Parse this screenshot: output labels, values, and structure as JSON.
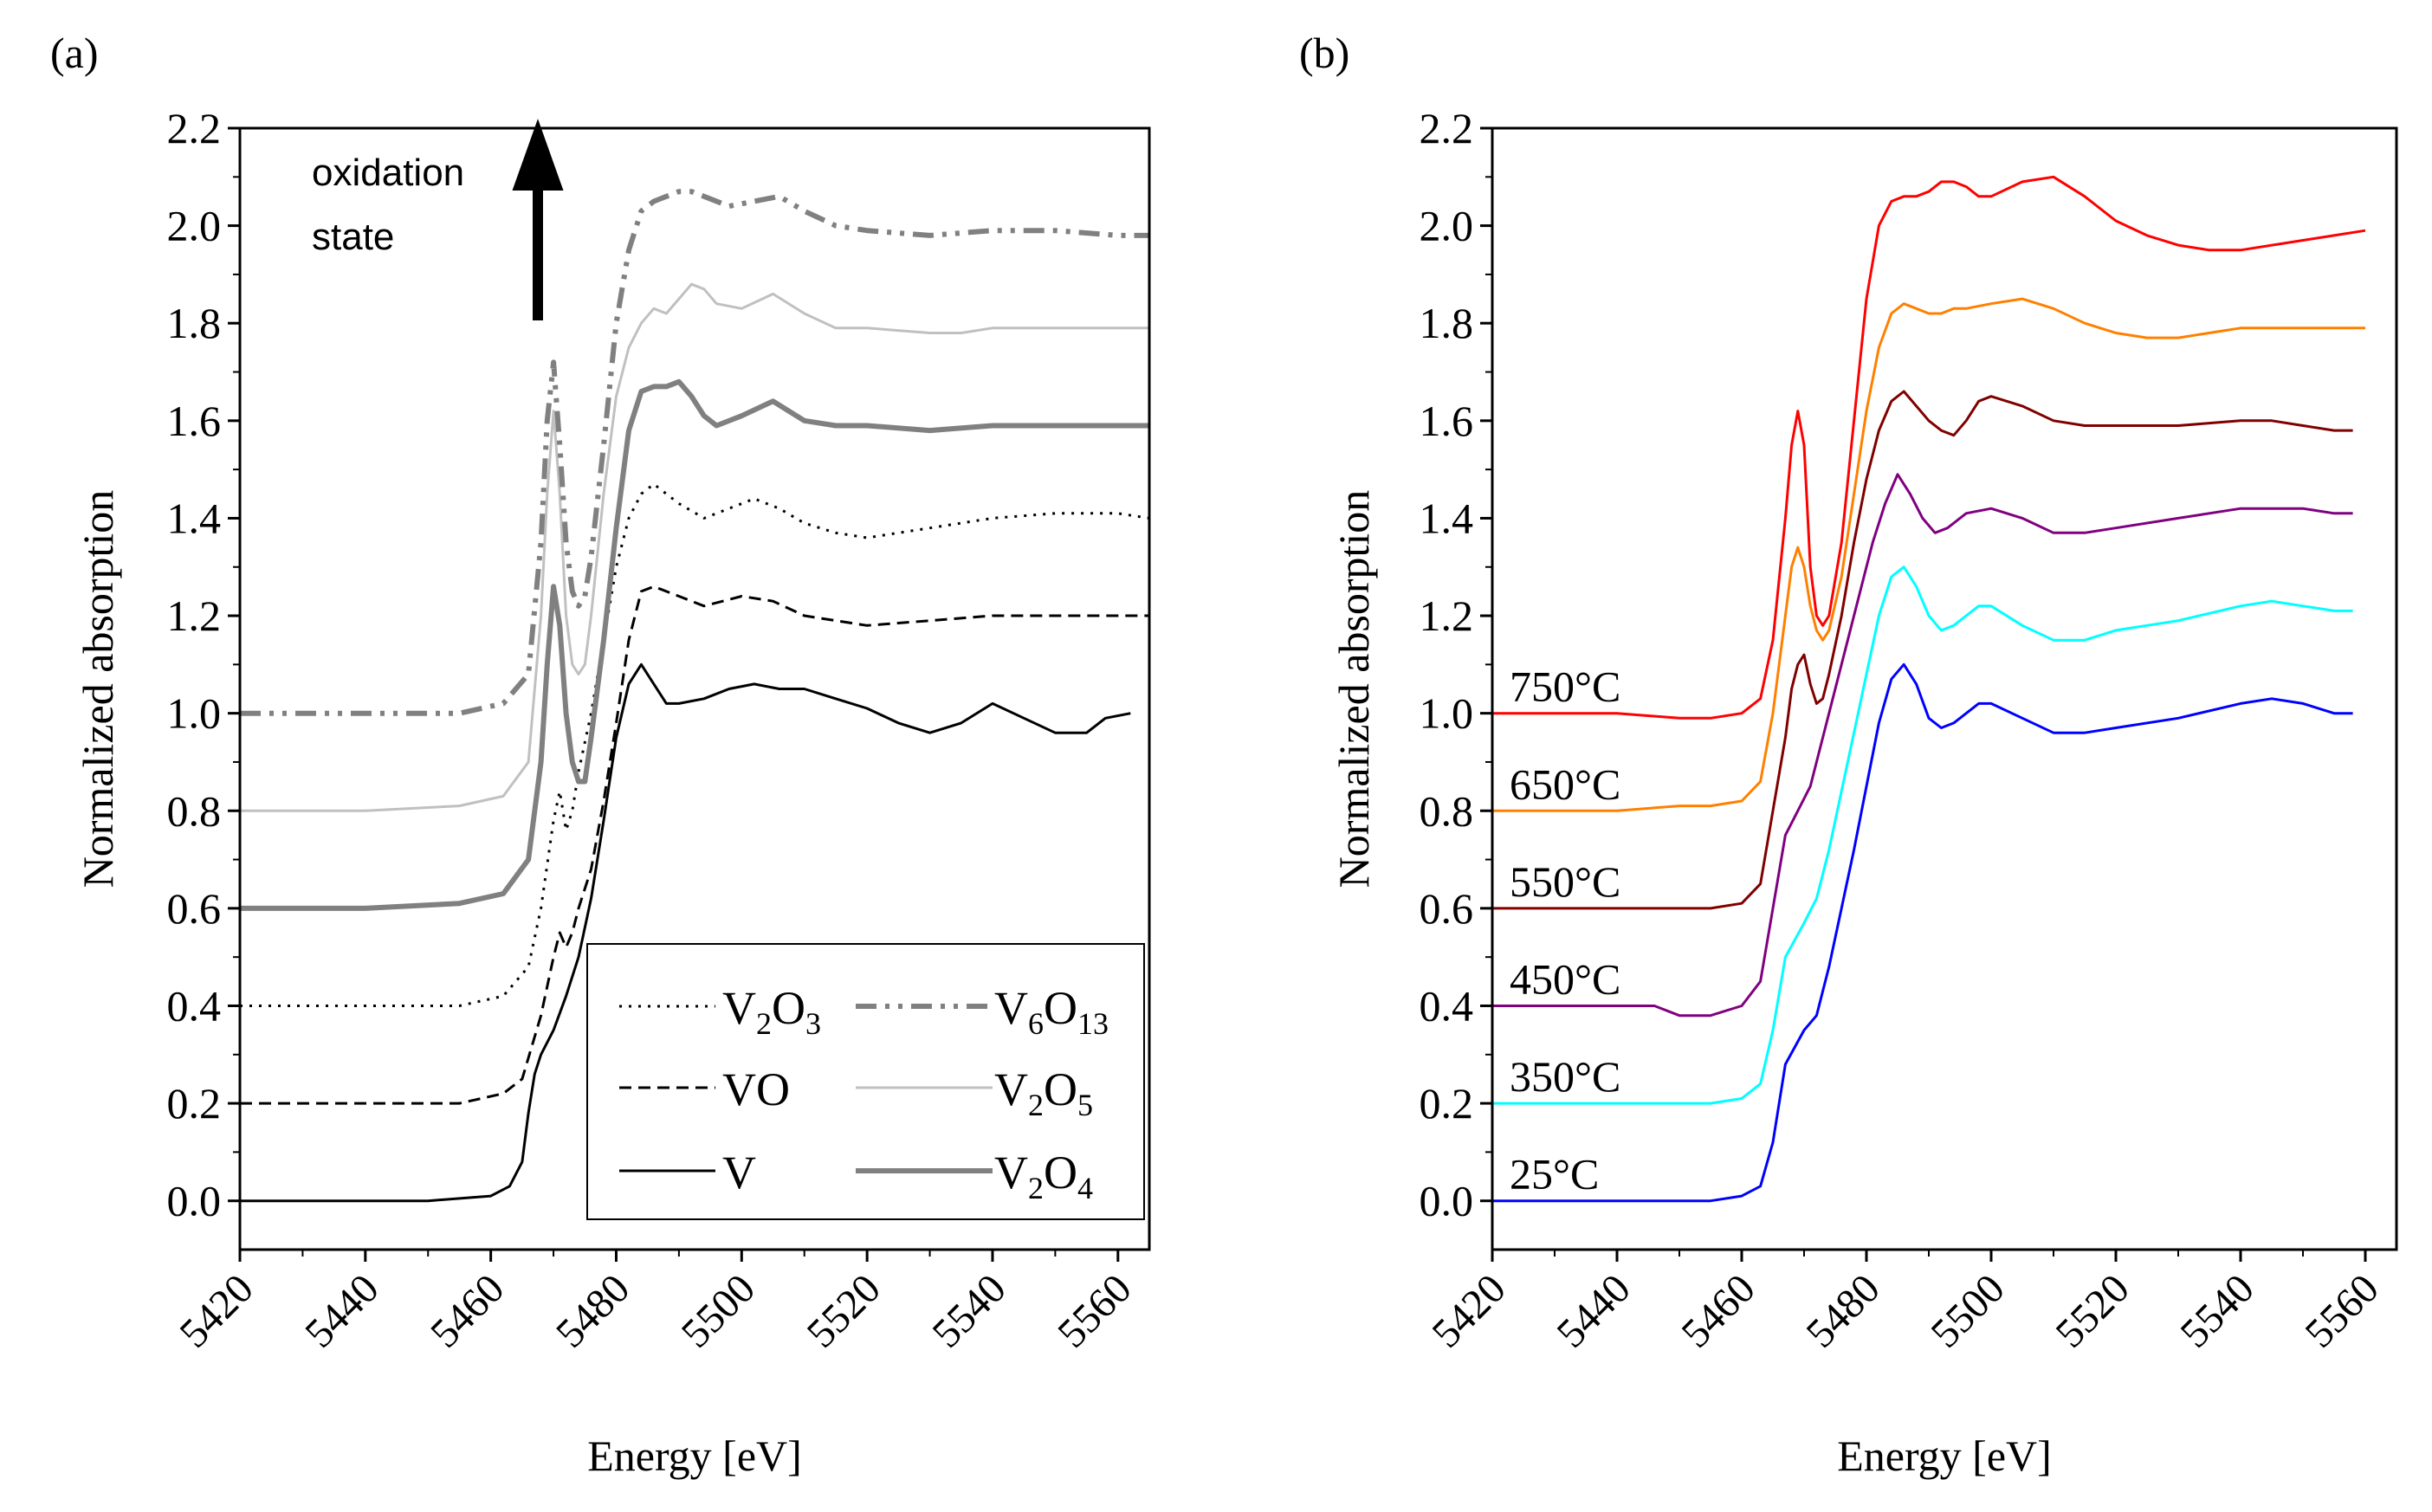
{
  "chart_data": [
    {
      "panel_label": "(a)",
      "type": "line",
      "xlabel": "Energy [eV]",
      "ylabel": "Normalized absorption",
      "xlim": [
        5420,
        5565
      ],
      "ylim": [
        -0.1,
        2.2
      ],
      "xticks": [
        5420,
        5440,
        5460,
        5480,
        5500,
        5520,
        5540,
        5560
      ],
      "yticks": [
        0.0,
        0.2,
        0.4,
        0.6,
        0.8,
        1.0,
        1.2,
        1.4,
        1.6,
        1.8,
        2.0,
        2.2
      ],
      "annotation": {
        "line1": "oxidation",
        "line2": "state",
        "arrow": "up"
      },
      "legend": {
        "position": "bottom-right",
        "items": [
          {
            "series": "V2O3",
            "base": "V",
            "sub1": "2",
            "mid": "O",
            "sub2": "3"
          },
          {
            "series": "V6O13",
            "base": "V",
            "sub1": "6",
            "mid": "O",
            "sub2": "13"
          },
          {
            "series": "VO",
            "label": "VO"
          },
          {
            "series": "V2O5",
            "base": "V",
            "sub1": "2",
            "mid": "O",
            "sub2": "5"
          },
          {
            "series": "V",
            "label": "V"
          },
          {
            "series": "V2O4",
            "base": "V",
            "sub1": "2",
            "mid": "O",
            "sub2": "4"
          }
        ]
      },
      "series": [
        {
          "name": "V",
          "color": "#000000",
          "dash": "solid",
          "width": 3,
          "x": [
            5420,
            5440,
            5450,
            5460,
            5463,
            5465,
            5466,
            5467,
            5468,
            5470,
            5472,
            5474,
            5476,
            5478,
            5480,
            5482,
            5484,
            5486,
            5488,
            5490,
            5494,
            5498,
            5502,
            5506,
            5510,
            5515,
            5520,
            5525,
            5530,
            5535,
            5540,
            5545,
            5550,
            5555,
            5558,
            5562
          ],
          "y": [
            0.0,
            0.0,
            0.0,
            0.01,
            0.03,
            0.08,
            0.18,
            0.26,
            0.3,
            0.35,
            0.42,
            0.5,
            0.62,
            0.78,
            0.95,
            1.06,
            1.1,
            1.06,
            1.02,
            1.02,
            1.03,
            1.05,
            1.06,
            1.05,
            1.05,
            1.03,
            1.01,
            0.98,
            0.96,
            0.98,
            1.02,
            0.99,
            0.96,
            0.96,
            0.99,
            1.0
          ]
        },
        {
          "name": "VO",
          "color": "#000000",
          "dash": "dashed",
          "width": 3,
          "x": [
            5420,
            5440,
            5455,
            5462,
            5465,
            5468,
            5470,
            5471,
            5472,
            5473,
            5474,
            5476,
            5478,
            5480,
            5482,
            5484,
            5486,
            5490,
            5494,
            5500,
            5505,
            5510,
            5515,
            5520,
            5530,
            5540,
            5550,
            5560,
            5565
          ],
          "y": [
            0.2,
            0.2,
            0.2,
            0.22,
            0.25,
            0.38,
            0.5,
            0.55,
            0.52,
            0.55,
            0.6,
            0.68,
            0.82,
            0.98,
            1.15,
            1.25,
            1.26,
            1.24,
            1.22,
            1.24,
            1.23,
            1.2,
            1.19,
            1.18,
            1.19,
            1.2,
            1.2,
            1.2,
            1.2
          ]
        },
        {
          "name": "V2O3",
          "color": "#000000",
          "dash": "dotted",
          "width": 3,
          "x": [
            5420,
            5440,
            5455,
            5462,
            5466,
            5468,
            5470,
            5471,
            5472,
            5473,
            5474,
            5476,
            5478,
            5480,
            5482,
            5484,
            5486,
            5488,
            5490,
            5494,
            5498,
            5502,
            5506,
            5510,
            5515,
            5520,
            5530,
            5540,
            5550,
            5560,
            5565
          ],
          "y": [
            0.4,
            0.4,
            0.4,
            0.42,
            0.48,
            0.6,
            0.78,
            0.84,
            0.76,
            0.8,
            0.88,
            1.0,
            1.15,
            1.3,
            1.4,
            1.45,
            1.47,
            1.45,
            1.43,
            1.4,
            1.42,
            1.44,
            1.42,
            1.39,
            1.37,
            1.36,
            1.38,
            1.4,
            1.41,
            1.41,
            1.4
          ]
        },
        {
          "name": "V2O4",
          "color": "#808080",
          "dash": "solid",
          "width": 6,
          "x": [
            5420,
            5440,
            5455,
            5462,
            5466,
            5468,
            5469,
            5470,
            5471,
            5472,
            5473,
            5474,
            5475,
            5476,
            5478,
            5480,
            5482,
            5484,
            5486,
            5488,
            5490,
            5492,
            5494,
            5496,
            5500,
            5505,
            5510,
            5515,
            5520,
            5530,
            5540,
            5550,
            5560,
            5565
          ],
          "y": [
            0.6,
            0.6,
            0.61,
            0.63,
            0.7,
            0.9,
            1.1,
            1.26,
            1.18,
            1.0,
            0.9,
            0.86,
            0.86,
            0.95,
            1.15,
            1.38,
            1.58,
            1.66,
            1.67,
            1.67,
            1.68,
            1.65,
            1.61,
            1.59,
            1.61,
            1.64,
            1.6,
            1.59,
            1.59,
            1.58,
            1.59,
            1.59,
            1.59,
            1.59
          ]
        },
        {
          "name": "V2O5",
          "color": "#c0c0c0",
          "dash": "solid",
          "width": 3,
          "x": [
            5420,
            5440,
            5455,
            5462,
            5466,
            5468,
            5469,
            5470,
            5471,
            5472,
            5473,
            5474,
            5475,
            5476,
            5478,
            5480,
            5482,
            5484,
            5486,
            5488,
            5490,
            5492,
            5494,
            5496,
            5500,
            5505,
            5510,
            5515,
            5520,
            5530,
            5535,
            5540,
            5550,
            5560,
            5565
          ],
          "y": [
            0.8,
            0.8,
            0.81,
            0.83,
            0.9,
            1.2,
            1.45,
            1.62,
            1.45,
            1.2,
            1.1,
            1.08,
            1.1,
            1.2,
            1.45,
            1.65,
            1.75,
            1.8,
            1.83,
            1.82,
            1.85,
            1.88,
            1.87,
            1.84,
            1.83,
            1.86,
            1.82,
            1.79,
            1.79,
            1.78,
            1.78,
            1.79,
            1.79,
            1.79,
            1.79
          ]
        },
        {
          "name": "V6O13",
          "color": "#808080",
          "dash": "dashdotdot",
          "width": 6,
          "x": [
            5420,
            5440,
            5455,
            5462,
            5466,
            5468,
            5469,
            5470,
            5471,
            5472,
            5473,
            5474,
            5475,
            5476,
            5478,
            5480,
            5482,
            5484,
            5486,
            5488,
            5490,
            5492,
            5494,
            5498,
            5502,
            5506,
            5510,
            5515,
            5520,
            5530,
            5540,
            5550,
            5560,
            5565
          ],
          "y": [
            1.0,
            1.0,
            1.0,
            1.02,
            1.08,
            1.35,
            1.6,
            1.72,
            1.55,
            1.35,
            1.25,
            1.22,
            1.24,
            1.32,
            1.55,
            1.8,
            1.95,
            2.03,
            2.05,
            2.06,
            2.07,
            2.07,
            2.06,
            2.04,
            2.05,
            2.06,
            2.03,
            2.0,
            1.99,
            1.98,
            1.99,
            1.99,
            1.98,
            1.98
          ]
        }
      ]
    },
    {
      "panel_label": "(b)",
      "type": "line",
      "xlabel": "Energy [eV]",
      "ylabel": "Normalized absorption",
      "xlim": [
        5420,
        5565
      ],
      "ylim": [
        -0.1,
        2.2
      ],
      "xticks": [
        5420,
        5440,
        5460,
        5480,
        5500,
        5520,
        5540,
        5560
      ],
      "yticks": [
        0.0,
        0.2,
        0.4,
        0.6,
        0.8,
        1.0,
        1.2,
        1.4,
        1.6,
        1.8,
        2.0,
        2.2
      ],
      "series": [
        {
          "name": "25°C",
          "color": "#0000ff",
          "dash": "solid",
          "width": 3,
          "x": [
            5420,
            5440,
            5455,
            5460,
            5463,
            5465,
            5467,
            5470,
            5472,
            5474,
            5476,
            5478,
            5480,
            5482,
            5484,
            5486,
            5488,
            5490,
            5492,
            5494,
            5496,
            5498,
            5500,
            5505,
            5510,
            5515,
            5520,
            5530,
            5540,
            5545,
            5550,
            5555,
            5558
          ],
          "y": [
            0.0,
            0.0,
            0.0,
            0.01,
            0.03,
            0.12,
            0.28,
            0.35,
            0.38,
            0.48,
            0.6,
            0.72,
            0.85,
            0.98,
            1.07,
            1.1,
            1.06,
            0.99,
            0.97,
            0.98,
            1.0,
            1.02,
            1.02,
            0.99,
            0.96,
            0.96,
            0.97,
            0.99,
            1.02,
            1.03,
            1.02,
            1.0,
            1.0
          ]
        },
        {
          "name": "350°C",
          "color": "#00ffff",
          "dash": "solid",
          "width": 3,
          "x": [
            5420,
            5440,
            5455,
            5460,
            5463,
            5465,
            5467,
            5470,
            5472,
            5474,
            5476,
            5478,
            5480,
            5482,
            5484,
            5486,
            5488,
            5490,
            5492,
            5494,
            5496,
            5498,
            5500,
            5505,
            5510,
            5515,
            5520,
            5530,
            5540,
            5545,
            5550,
            5555,
            5558
          ],
          "y": [
            0.2,
            0.2,
            0.2,
            0.21,
            0.24,
            0.35,
            0.5,
            0.57,
            0.62,
            0.72,
            0.84,
            0.96,
            1.08,
            1.2,
            1.28,
            1.3,
            1.26,
            1.2,
            1.17,
            1.18,
            1.2,
            1.22,
            1.22,
            1.18,
            1.15,
            1.15,
            1.17,
            1.19,
            1.22,
            1.23,
            1.22,
            1.21,
            1.21
          ]
        },
        {
          "name": "450°C",
          "color": "#800080",
          "dash": "solid",
          "width": 3,
          "x": [
            5420,
            5440,
            5446,
            5450,
            5455,
            5460,
            5463,
            5465,
            5467,
            5469,
            5471,
            5473,
            5475,
            5477,
            5479,
            5481,
            5483,
            5485,
            5487,
            5489,
            5491,
            5493,
            5496,
            5500,
            5505,
            5510,
            5515,
            5520,
            5530,
            5540,
            5545,
            5550,
            5555,
            5558
          ],
          "y": [
            0.4,
            0.4,
            0.4,
            0.38,
            0.38,
            0.4,
            0.45,
            0.6,
            0.75,
            0.8,
            0.85,
            0.95,
            1.05,
            1.15,
            1.25,
            1.35,
            1.43,
            1.49,
            1.45,
            1.4,
            1.37,
            1.38,
            1.41,
            1.42,
            1.4,
            1.37,
            1.37,
            1.38,
            1.4,
            1.42,
            1.42,
            1.42,
            1.41,
            1.41
          ]
        },
        {
          "name": "550°C",
          "color": "#800000",
          "dash": "solid",
          "width": 3,
          "x": [
            5420,
            5440,
            5450,
            5455,
            5460,
            5463,
            5465,
            5467,
            5468,
            5469,
            5470,
            5471,
            5472,
            5473,
            5474,
            5476,
            5478,
            5480,
            5482,
            5484,
            5486,
            5488,
            5490,
            5492,
            5494,
            5496,
            5498,
            5500,
            5505,
            5510,
            5515,
            5520,
            5530,
            5540,
            5545,
            5550,
            5555,
            5558
          ],
          "y": [
            0.6,
            0.6,
            0.6,
            0.6,
            0.61,
            0.65,
            0.8,
            0.95,
            1.05,
            1.1,
            1.12,
            1.06,
            1.02,
            1.03,
            1.08,
            1.2,
            1.35,
            1.48,
            1.58,
            1.64,
            1.66,
            1.63,
            1.6,
            1.58,
            1.57,
            1.6,
            1.64,
            1.65,
            1.63,
            1.6,
            1.59,
            1.59,
            1.59,
            1.6,
            1.6,
            1.59,
            1.58,
            1.58
          ]
        },
        {
          "name": "650°C",
          "color": "#ff8000",
          "dash": "solid",
          "width": 3,
          "x": [
            5420,
            5440,
            5450,
            5455,
            5460,
            5463,
            5465,
            5467,
            5468,
            5469,
            5470,
            5471,
            5472,
            5473,
            5474,
            5476,
            5478,
            5480,
            5482,
            5484,
            5486,
            5488,
            5490,
            5492,
            5494,
            5496,
            5500,
            5505,
            5510,
            5515,
            5520,
            5525,
            5530,
            5540,
            5545,
            5550,
            5555,
            5560
          ],
          "y": [
            0.8,
            0.8,
            0.81,
            0.81,
            0.82,
            0.86,
            1.0,
            1.2,
            1.3,
            1.34,
            1.3,
            1.22,
            1.17,
            1.15,
            1.17,
            1.28,
            1.45,
            1.62,
            1.75,
            1.82,
            1.84,
            1.83,
            1.82,
            1.82,
            1.83,
            1.83,
            1.84,
            1.85,
            1.83,
            1.8,
            1.78,
            1.77,
            1.77,
            1.79,
            1.79,
            1.79,
            1.79,
            1.79
          ]
        },
        {
          "name": "750°C",
          "color": "#ff0000",
          "dash": "solid",
          "width": 3,
          "x": [
            5420,
            5440,
            5450,
            5455,
            5460,
            5463,
            5465,
            5467,
            5468,
            5469,
            5470,
            5471,
            5472,
            5473,
            5474,
            5476,
            5478,
            5480,
            5482,
            5484,
            5486,
            5488,
            5490,
            5492,
            5494,
            5496,
            5498,
            5500,
            5505,
            5510,
            5515,
            5520,
            5525,
            5530,
            5535,
            5540,
            5550,
            5555,
            5560
          ],
          "y": [
            1.0,
            1.0,
            0.99,
            0.99,
            1.0,
            1.03,
            1.15,
            1.4,
            1.55,
            1.62,
            1.55,
            1.3,
            1.2,
            1.18,
            1.2,
            1.35,
            1.6,
            1.85,
            2.0,
            2.05,
            2.06,
            2.06,
            2.07,
            2.09,
            2.09,
            2.08,
            2.06,
            2.06,
            2.09,
            2.1,
            2.06,
            2.01,
            1.98,
            1.96,
            1.95,
            1.95,
            1.97,
            1.98,
            1.99
          ]
        }
      ],
      "curve_labels": [
        {
          "series": "750°C",
          "text": "750°C"
        },
        {
          "series": "650°C",
          "text": "650°C"
        },
        {
          "series": "550°C",
          "text": "550°C"
        },
        {
          "series": "450°C",
          "text": "450°C"
        },
        {
          "series": "350°C",
          "text": "350°C"
        },
        {
          "series": "25°C",
          "text": "25°C"
        }
      ]
    }
  ]
}
